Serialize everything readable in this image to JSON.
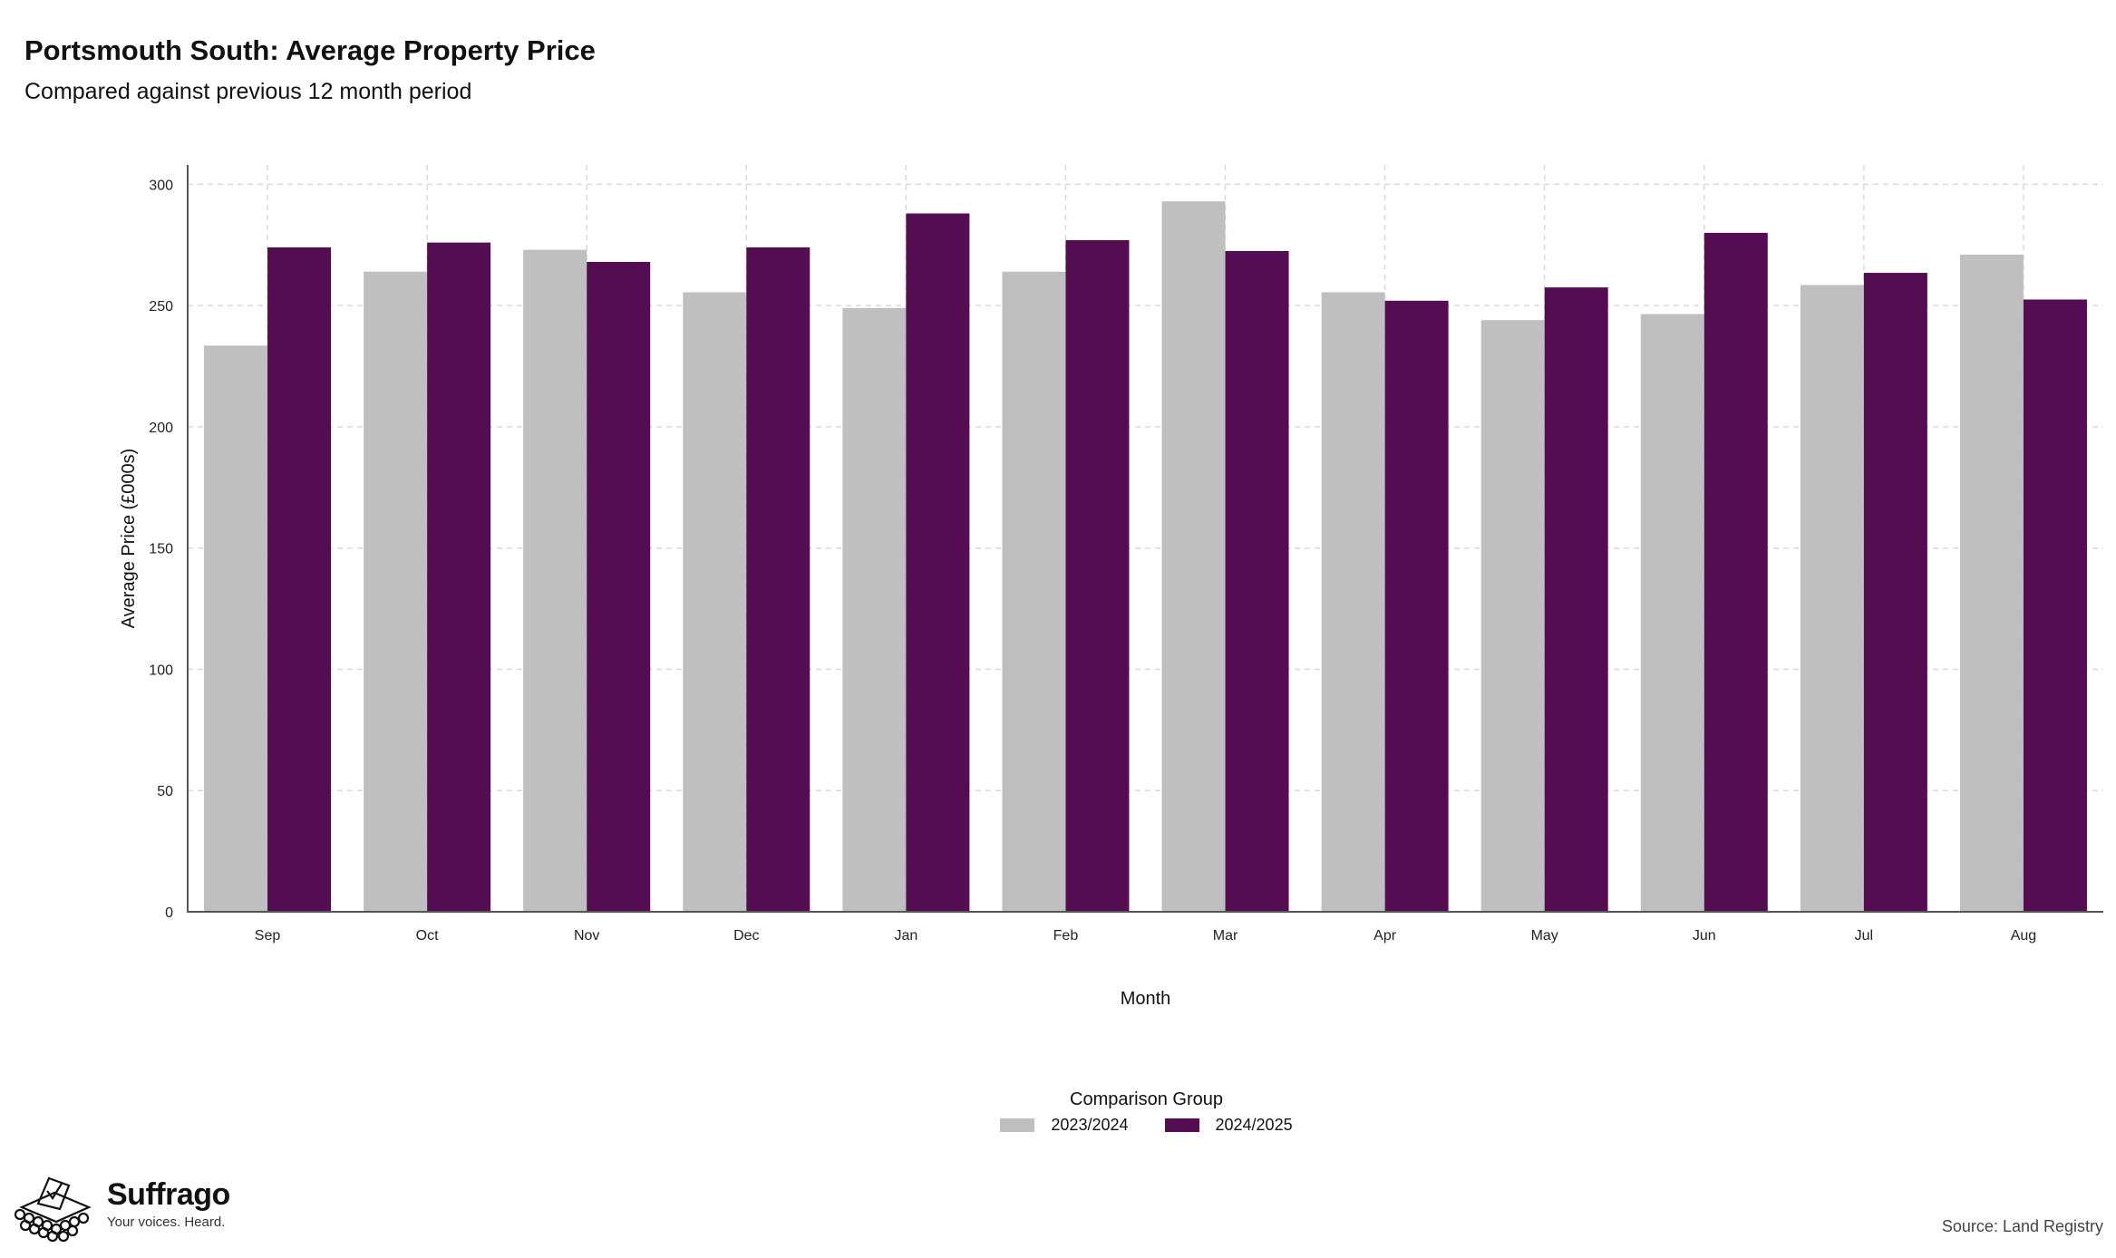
{
  "header": {
    "title": "Portsmouth South: Average Property Price",
    "subtitle": "Compared against previous 12 month period"
  },
  "legend": {
    "title": "Comparison Group",
    "items": [
      {
        "label": "2023/2024",
        "color": "#bfbfbf"
      },
      {
        "label": "2024/2025",
        "color": "#540c52"
      }
    ]
  },
  "footer": {
    "brand_name": "Suffrago",
    "brand_tagline": "Your voices. Heard.",
    "source": "Source: Land Registry"
  },
  "chart_data": {
    "type": "bar",
    "title": "Portsmouth South: Average Property Price",
    "subtitle": "Compared against previous 12 month period",
    "xlabel": "Month",
    "ylabel": "Average Price (£000s)",
    "categories": [
      "Sep",
      "Oct",
      "Nov",
      "Dec",
      "Jan",
      "Feb",
      "Mar",
      "Apr",
      "May",
      "Jun",
      "Jul",
      "Aug"
    ],
    "series": [
      {
        "name": "2023/2024",
        "color": "#bfbfbf",
        "values": [
          233.5,
          264,
          273,
          255.5,
          249,
          264,
          293,
          255.5,
          244,
          246.5,
          258.5,
          271
        ]
      },
      {
        "name": "2024/2025",
        "color": "#540c52",
        "values": [
          274,
          276,
          268,
          274,
          288,
          277,
          272.5,
          252,
          257.5,
          280,
          263.5,
          252.5
        ]
      }
    ],
    "ylim": [
      0,
      308
    ],
    "yticks": [
      0,
      50,
      100,
      150,
      200,
      250,
      300
    ],
    "grid": true,
    "legend_position": "bottom"
  }
}
